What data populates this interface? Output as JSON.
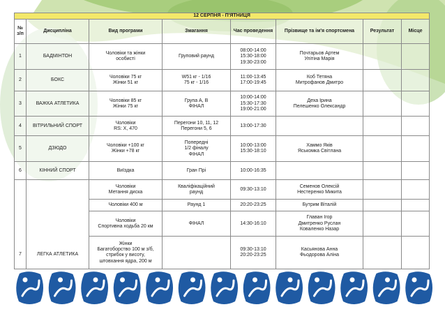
{
  "header": {
    "title": "12 СЕРПНЯ - П'ЯТНИЦЯ",
    "columns": [
      "№ з/п",
      "Дисципліна",
      "Вид програми",
      "Змагання",
      "Час проведення",
      "Прізвище та ім'я спортсмена",
      "Результат",
      "Місце"
    ]
  },
  "table": {
    "rows": [
      {
        "number": "1",
        "discipline": "БАДМІНТОН",
        "events": [
          {
            "program": [
              "Чоловіки та жінки",
              "особисті"
            ],
            "competition": [
              "Груповий раунд"
            ],
            "time": [
              "08:00-14:00",
              "15:30-18:00",
              "19:30-23:00"
            ],
            "athletes": [
              "Почтарьов Артем",
              "Улітіна Марія"
            ]
          }
        ]
      },
      {
        "number": "2",
        "discipline": "БОКС",
        "events": [
          {
            "program": [
              "Чоловіки 75 кг",
              "Жінки   51 кг"
            ],
            "competition": [
              "W51 кг - 1/16",
              "75 кг - 1/16"
            ],
            "time": [
              "11:00-13:45",
              "17:00-19:45"
            ],
            "athletes": [
              "Коб Тетяна",
              "Митрофанов Дмитро"
            ]
          }
        ]
      },
      {
        "number": "3",
        "discipline": "ВАЖКА АТЛЕТИКА",
        "events": [
          {
            "program": [
              "Чоловіки   85 кг",
              "Жінки   75 кг"
            ],
            "competition": [
              "Група А, В",
              "ФІНАЛ"
            ],
            "time": [
              "10:00-14:00",
              "15:30-17:30",
              "19:00-21:00"
            ],
            "athletes": [
              "Деха Ірина",
              "Пелешенко Олександр"
            ]
          }
        ]
      },
      {
        "number": "4",
        "discipline": "ВІТРИЛЬНИЙ СПОРТ",
        "events": [
          {
            "program": [
              "Чоловіки",
              "RS: X, 470"
            ],
            "competition": [
              "Перегони 10, 11, 12",
              "Перегони 5, 6"
            ],
            "time": [
              "13:00-17:30"
            ],
            "athletes": []
          }
        ]
      },
      {
        "number": "5",
        "discipline": "ДЗЮДО",
        "events": [
          {
            "program": [
              "Чоловіки  +100 кг",
              "Жінки +78 кг"
            ],
            "competition": [
              "Попередні",
              "1/2 фіналу",
              "ФІНАЛ"
            ],
            "time": [
              "10:00-13:00",
              "15:30-18:10"
            ],
            "athletes": [
              "Хаммо Яків",
              "Яськомка Світлана"
            ]
          }
        ]
      },
      {
        "number": "6",
        "discipline": "КІННИЙ СПОРТ",
        "events": [
          {
            "program": [
              "Виїздка"
            ],
            "competition": [
              "Гран Прі"
            ],
            "time": [
              "10:00-16:35"
            ],
            "athletes": []
          }
        ]
      },
      {
        "number": "7",
        "discipline": "ЛЕГКА АТЛЕТИКА",
        "events": [
          {
            "program": [
              "Чоловіки",
              "Метання диска"
            ],
            "competition": [
              "Кваліфікаційний",
              "раунд"
            ],
            "time": [
              "09:30-13:10"
            ],
            "athletes": [
              "Семенов Олексій",
              "Нестеренко Микита"
            ]
          },
          {
            "program": [
              "Чоловіки   400 м"
            ],
            "competition": [
              "Раунд 1"
            ],
            "time": [
              "20:20-23:25"
            ],
            "athletes": [
              "Бутрим Віталій"
            ]
          },
          {
            "program": [
              "Чоловіки",
              "Спортивна ходьба 20 км"
            ],
            "competition": [
              "ФІНАЛ"
            ],
            "time": [
              "14:30-16:10"
            ],
            "athletes": [
              "Главан Ігор",
              "Дмитренко Руслан",
              "Коваленко Назар"
            ]
          },
          {
            "program": [
              "Жінки",
              "Багатоборство 100 м з/б,",
              "стрибок у висоту,",
              "штовхання ядра, 200 м"
            ],
            "competition": [],
            "time": [
              "09:30-13:10",
              "20:20-23:25"
            ],
            "athletes": [
              "Касьянова Анна",
              "Фьодорова Аліна"
            ]
          }
        ]
      }
    ]
  }
}
